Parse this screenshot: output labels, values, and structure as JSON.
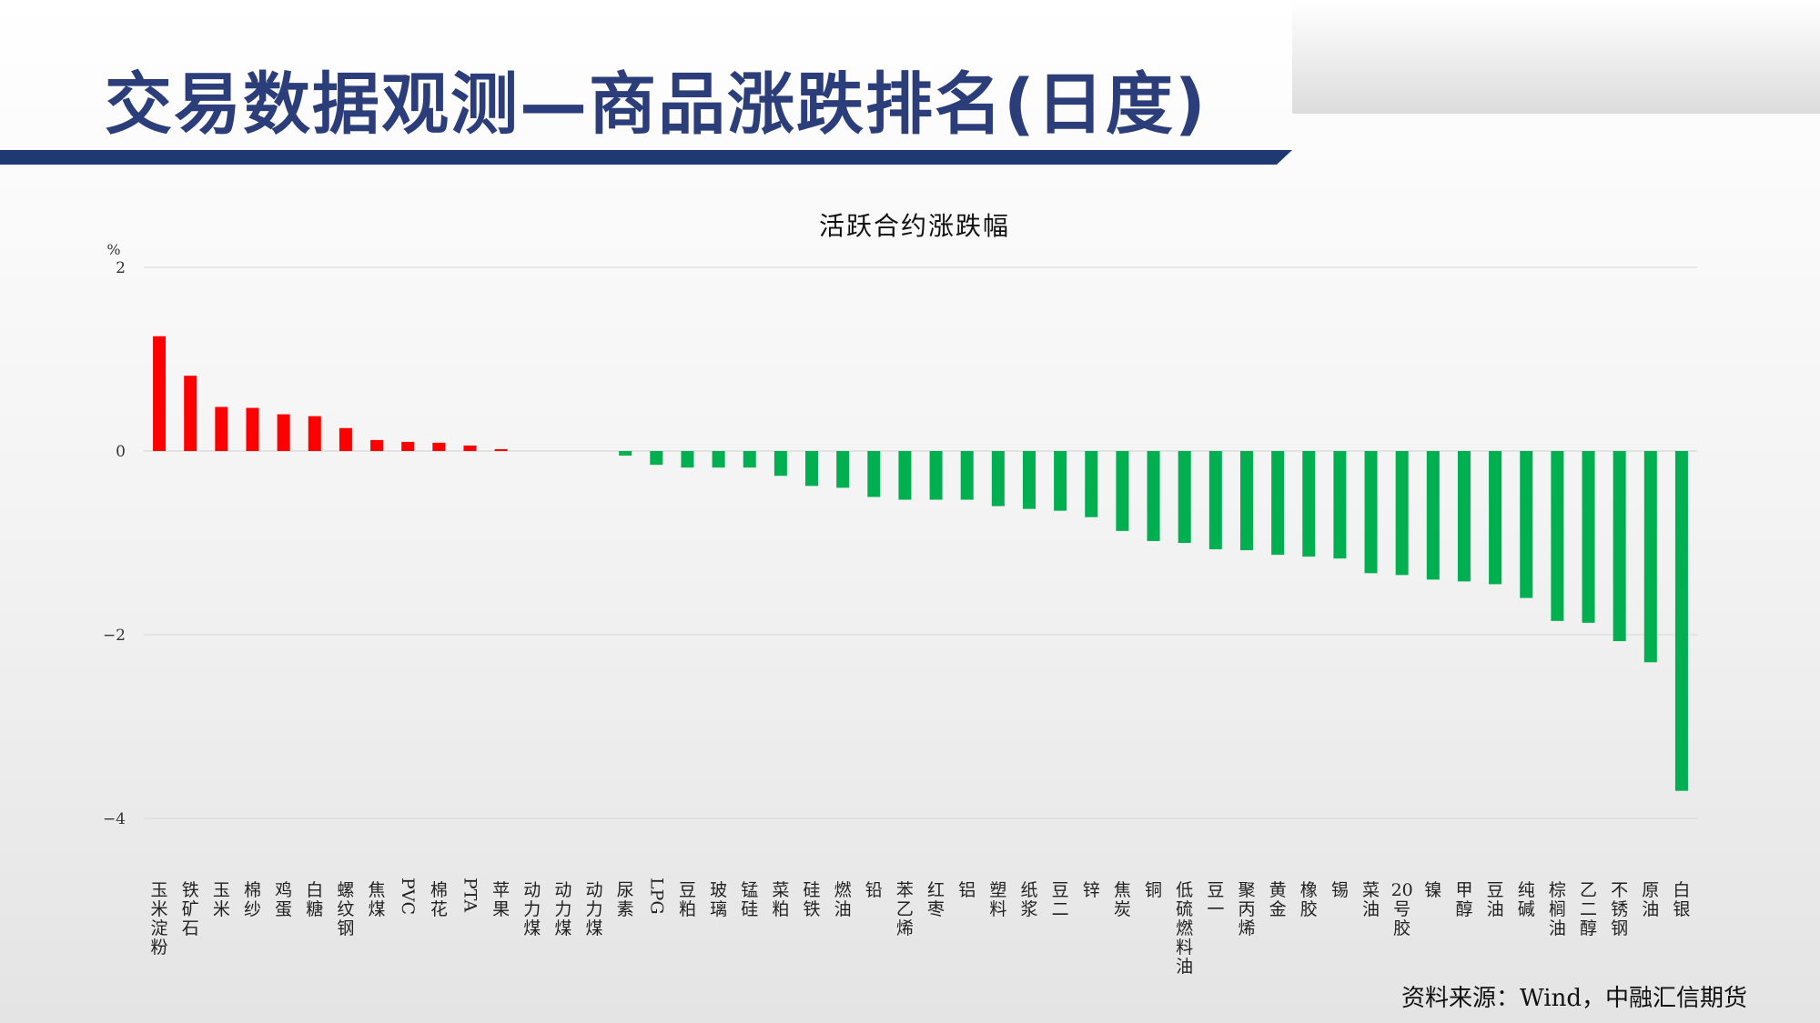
{
  "page": {
    "title": "交易数据观测—商品涨跌排名(日度)",
    "source": "资料来源：Wind，中融汇信期货"
  },
  "colors": {
    "up": "#ff0000",
    "down": "#00b050",
    "title": "#2c3e7a",
    "band": "#1f3a73"
  },
  "chart_data": {
    "type": "bar",
    "title": "活跃合约涨跌幅",
    "ylabel": "%",
    "ylim": [
      -4,
      2
    ],
    "yticks": [
      2,
      0,
      -2,
      -4
    ],
    "ytick_labels": [
      "2",
      "0",
      "−2",
      "−4"
    ],
    "grid": true,
    "categories": [
      "玉米淀粉",
      "铁矿石",
      "玉米",
      "棉纱",
      "鸡蛋",
      "白糖",
      "螺纹钢",
      "焦煤",
      "PVC",
      "棉花",
      "PTA",
      "苹果",
      "动力煤",
      "动力煤",
      "动力煤",
      "尿素",
      "LPG",
      "豆粕",
      "玻璃",
      "锰硅",
      "菜粕",
      "硅铁",
      "燃油",
      "铅",
      "苯乙烯",
      "红枣",
      "铝",
      "塑料",
      "纸浆",
      "豆二",
      "锌",
      "焦炭",
      "铜",
      "低硫燃料油",
      "豆一",
      "聚丙烯",
      "黄金",
      "橡胶",
      "锡",
      "菜油",
      "20号胶",
      "镍",
      "甲醇",
      "豆油",
      "纯碱",
      "棕榈油",
      "乙二醇",
      "不锈钢",
      "原油",
      "白银"
    ],
    "values": [
      1.25,
      0.82,
      0.48,
      0.47,
      0.4,
      0.38,
      0.25,
      0.12,
      0.1,
      0.09,
      0.06,
      0.02,
      0,
      0,
      0,
      -0.05,
      -0.15,
      -0.18,
      -0.18,
      -0.18,
      -0.27,
      -0.38,
      -0.4,
      -0.5,
      -0.53,
      -0.53,
      -0.53,
      -0.6,
      -0.63,
      -0.65,
      -0.72,
      -0.87,
      -0.98,
      -1.0,
      -1.07,
      -1.08,
      -1.13,
      -1.15,
      -1.17,
      -1.33,
      -1.35,
      -1.4,
      -1.42,
      -1.45,
      -1.6,
      -1.85,
      -1.87,
      -2.07,
      -2.3,
      -3.7
    ]
  }
}
